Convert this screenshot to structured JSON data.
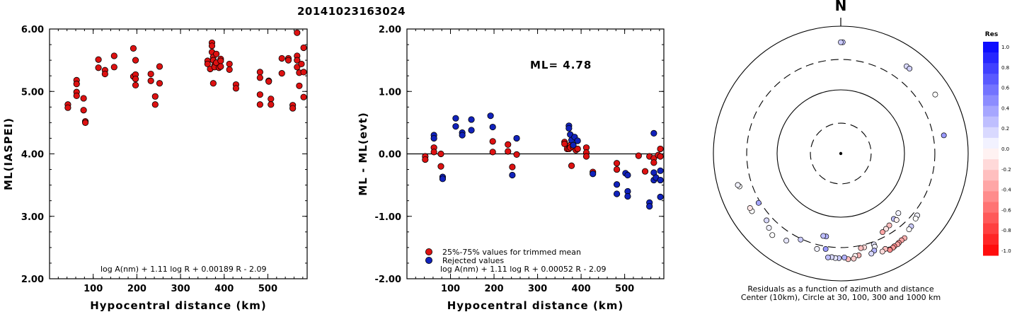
{
  "title": "20141023163024",
  "colors": {
    "red": "#dd1111",
    "blue": "#1122bb",
    "stroke": "#000000"
  },
  "chart_data": [
    {
      "type": "scatter",
      "xlabel": "Hypocentral distance (km)",
      "ylabel": "ML(IASPEI)",
      "xlim": [
        0,
        590
      ],
      "ylim": [
        2.0,
        6.0
      ],
      "xticks": [
        "100",
        "200",
        "300",
        "400",
        "500"
      ],
      "xtick_values": [
        100,
        200,
        300,
        400,
        500
      ],
      "yticks": [
        "2.00",
        "3.00",
        "4.00",
        "5.00",
        "6.00"
      ],
      "ytick_values": [
        2.0,
        3.0,
        4.0,
        5.0,
        6.0
      ],
      "formula": "log A(nm) + 1.11 log R + 0.00189 R - 2.09",
      "series": [
        {
          "color": "red",
          "points": [
            [
              42,
              4.79
            ],
            [
              42,
              4.74
            ],
            [
              62,
              5.18
            ],
            [
              62,
              5.12
            ],
            [
              62,
              4.99
            ],
            [
              62,
              4.93
            ],
            [
              78,
              4.89
            ],
            [
              78,
              4.7
            ],
            [
              82,
              4.52
            ],
            [
              82,
              4.5
            ],
            [
              112,
              5.51
            ],
            [
              112,
              5.38
            ],
            [
              127,
              5.34
            ],
            [
              127,
              5.28
            ],
            [
              148,
              5.57
            ],
            [
              148,
              5.39
            ],
            [
              192,
              5.69
            ],
            [
              192,
              5.24
            ],
            [
              197,
              5.5
            ],
            [
              197,
              5.27
            ],
            [
              197,
              5.2
            ],
            [
              197,
              5.1
            ],
            [
              232,
              5.28
            ],
            [
              232,
              5.17
            ],
            [
              242,
              4.92
            ],
            [
              242,
              4.79
            ],
            [
              252,
              5.4
            ],
            [
              252,
              5.13
            ],
            [
              362,
              5.49
            ],
            [
              362,
              5.44
            ],
            [
              368,
              5.36
            ],
            [
              372,
              5.78
            ],
            [
              372,
              5.73
            ],
            [
              372,
              5.63
            ],
            [
              375,
              5.55
            ],
            [
              375,
              5.5
            ],
            [
              378,
              5.42
            ],
            [
              378,
              5.39
            ],
            [
              375,
              5.13
            ],
            [
              382,
              5.6
            ],
            [
              382,
              5.46
            ],
            [
              388,
              5.38
            ],
            [
              392,
              5.52
            ],
            [
              392,
              5.49
            ],
            [
              392,
              5.4
            ],
            [
              412,
              5.44
            ],
            [
              412,
              5.35
            ],
            [
              427,
              5.11
            ],
            [
              427,
              5.05
            ],
            [
              482,
              5.31
            ],
            [
              482,
              5.22
            ],
            [
              482,
              4.95
            ],
            [
              482,
              4.79
            ],
            [
              502,
              5.17
            ],
            [
              502,
              5.16
            ],
            [
              507,
              4.88
            ],
            [
              507,
              4.79
            ],
            [
              532,
              5.53
            ],
            [
              532,
              5.29
            ],
            [
              547,
              5.53
            ],
            [
              547,
              5.5
            ],
            [
              557,
              4.78
            ],
            [
              557,
              4.73
            ],
            [
              567,
              5.94
            ],
            [
              567,
              5.57
            ],
            [
              567,
              5.5
            ],
            [
              567,
              5.39
            ],
            [
              572,
              5.3
            ],
            [
              572,
              5.09
            ],
            [
              577,
              5.44
            ],
            [
              582,
              5.7
            ],
            [
              582,
              5.31
            ],
            [
              582,
              4.91
            ]
          ]
        }
      ]
    },
    {
      "type": "scatter",
      "xlabel": "Hypocentral distance (km)",
      "ylabel": "ML - ML(evt)",
      "xlim": [
        0,
        590
      ],
      "ylim": [
        -2.0,
        2.0
      ],
      "xticks": [
        "100",
        "200",
        "300",
        "400",
        "500"
      ],
      "xtick_values": [
        100,
        200,
        300,
        400,
        500
      ],
      "yticks": [
        "-2.00",
        "-1.00",
        "0.00",
        "1.00",
        "2.00"
      ],
      "ytick_values": [
        -2.0,
        -1.0,
        0.0,
        1.0,
        2.0
      ],
      "annotation": "ML= 4.78",
      "formula": "log A(nm) + 1.11 log R + 0.00052 R - 2.09",
      "legend": [
        "25%-75% values for trimmed mean",
        "Rejected values"
      ],
      "series": [
        {
          "color": "red",
          "points": [
            [
              42,
              -0.04
            ],
            [
              42,
              -0.09
            ],
            [
              62,
              0.1
            ],
            [
              62,
              0.03
            ],
            [
              78,
              0.0
            ],
            [
              78,
              -0.2
            ],
            [
              197,
              0.2
            ],
            [
              197,
              0.03
            ],
            [
              232,
              0.15
            ],
            [
              232,
              0.04
            ],
            [
              242,
              -0.21
            ],
            [
              252,
              -0.01
            ],
            [
              362,
              0.19
            ],
            [
              362,
              0.16
            ],
            [
              368,
              0.08
            ],
            [
              372,
              0.08
            ],
            [
              375,
              0.14
            ],
            [
              375,
              0.1
            ],
            [
              378,
              -0.19
            ],
            [
              382,
              0.11
            ],
            [
              388,
              0.06
            ],
            [
              392,
              0.08
            ],
            [
              412,
              0.1
            ],
            [
              412,
              0.02
            ],
            [
              412,
              -0.04
            ],
            [
              427,
              -0.29
            ],
            [
              482,
              -0.15
            ],
            [
              482,
              -0.25
            ],
            [
              532,
              -0.03
            ],
            [
              547,
              -0.28
            ],
            [
              557,
              -0.04
            ],
            [
              567,
              -0.07
            ],
            [
              567,
              -0.14
            ],
            [
              577,
              -0.02
            ],
            [
              582,
              0.08
            ],
            [
              582,
              -0.04
            ]
          ]
        },
        {
          "color": "blue",
          "points": [
            [
              62,
              0.3
            ],
            [
              62,
              0.25
            ],
            [
              82,
              -0.37
            ],
            [
              82,
              -0.4
            ],
            [
              112,
              0.57
            ],
            [
              112,
              0.44
            ],
            [
              127,
              0.34
            ],
            [
              127,
              0.3
            ],
            [
              148,
              0.55
            ],
            [
              148,
              0.38
            ],
            [
              192,
              0.61
            ],
            [
              197,
              0.43
            ],
            [
              242,
              -0.34
            ],
            [
              252,
              0.25
            ],
            [
              372,
              0.45
            ],
            [
              372,
              0.41
            ],
            [
              375,
              0.31
            ],
            [
              378,
              0.22
            ],
            [
              385,
              0.27
            ],
            [
              392,
              0.21
            ],
            [
              382,
              0.14
            ],
            [
              427,
              -0.32
            ],
            [
              482,
              -0.49
            ],
            [
              482,
              -0.64
            ],
            [
              502,
              -0.31
            ],
            [
              507,
              -0.34
            ],
            [
              507,
              -0.6
            ],
            [
              507,
              -0.68
            ],
            [
              557,
              -0.78
            ],
            [
              557,
              -0.84
            ],
            [
              567,
              0.33
            ],
            [
              567,
              -0.3
            ],
            [
              567,
              -0.42
            ],
            [
              572,
              -0.38
            ],
            [
              582,
              -0.27
            ],
            [
              582,
              -0.42
            ],
            [
              582,
              -0.69
            ]
          ]
        }
      ]
    },
    {
      "type": "polar-scatter",
      "north_label": "N",
      "caption_line1": "Residuals as a function of azimuth and distance",
      "caption_line2": "Center (10km), Circle at 30, 100, 300 and 1000 km",
      "colorbar_title": "Res",
      "colorbar_ticks": [
        "1.0",
        "0.8",
        "0.6",
        "0.4",
        "0.2",
        "0.0",
        "-0.2",
        "-0.4",
        "-0.6",
        "-0.8",
        "-1.0"
      ],
      "rings_km": [
        30,
        100,
        300,
        1000
      ],
      "points": [
        {
          "az": 1,
          "dist": 560,
          "res": 0.25
        },
        {
          "az": 0,
          "dist": 560,
          "res": 0.2
        },
        {
          "az": 37,
          "dist": 520,
          "res": 0.15
        },
        {
          "az": 39,
          "dist": 520,
          "res": 0.18
        },
        {
          "az": 58,
          "dist": 560,
          "res": 0.0
        },
        {
          "az": 80,
          "dist": 440,
          "res": 0.4
        },
        {
          "az": 136,
          "dist": 200,
          "res": 0.05
        },
        {
          "az": 141,
          "dist": 210,
          "res": 0.25
        },
        {
          "az": 140,
          "dist": 230,
          "res": -0.05
        },
        {
          "az": 146,
          "dist": 230,
          "res": -0.25
        },
        {
          "az": 149,
          "dist": 240,
          "res": -0.1
        },
        {
          "az": 152,
          "dist": 250,
          "res": -0.35
        },
        {
          "az": 129,
          "dist": 350,
          "res": 0.05
        },
        {
          "az": 131,
          "dist": 360,
          "res": 0.0
        },
        {
          "az": 136,
          "dist": 390,
          "res": 0.2
        },
        {
          "az": 138,
          "dist": 400,
          "res": 0.0
        },
        {
          "az": 143,
          "dist": 460,
          "res": -0.3
        },
        {
          "az": 145,
          "dist": 460,
          "res": -0.35
        },
        {
          "az": 147,
          "dist": 470,
          "res": -0.4
        },
        {
          "az": 148,
          "dist": 480,
          "res": -0.35
        },
        {
          "az": 150,
          "dist": 480,
          "res": -0.45
        },
        {
          "az": 151,
          "dist": 490,
          "res": -0.4
        },
        {
          "az": 153,
          "dist": 490,
          "res": -0.5
        },
        {
          "az": 153,
          "dist": 500,
          "res": -0.45
        },
        {
          "az": 155,
          "dist": 450,
          "res": -0.25
        },
        {
          "az": 157,
          "dist": 470,
          "res": -0.15
        },
        {
          "az": 160,
          "dist": 330,
          "res": 0.1
        },
        {
          "az": 160,
          "dist": 360,
          "res": 0.05
        },
        {
          "az": 161,
          "dist": 410,
          "res": 0.3
        },
        {
          "az": 163,
          "dist": 440,
          "res": 0.15
        },
        {
          "az": 166,
          "dist": 330,
          "res": -0.15
        },
        {
          "az": 168,
          "dist": 330,
          "res": -0.25
        },
        {
          "az": 170,
          "dist": 420,
          "res": -0.3
        },
        {
          "az": 172,
          "dist": 420,
          "res": -0.05
        },
        {
          "az": 173,
          "dist": 460,
          "res": -0.2
        },
        {
          "az": 176,
          "dist": 460,
          "res": -0.25
        },
        {
          "az": 178,
          "dist": 430,
          "res": 0.3
        },
        {
          "az": 181,
          "dist": 440,
          "res": 0.2
        },
        {
          "az": 183,
          "dist": 440,
          "res": 0.1
        },
        {
          "az": 185,
          "dist": 430,
          "res": 0.15
        },
        {
          "az": 187,
          "dist": 440,
          "res": 0.25
        },
        {
          "az": 194,
          "dist": 350,
          "res": 0.05
        },
        {
          "az": 189,
          "dist": 330,
          "res": 0.4
        },
        {
          "az": 190,
          "dist": 210,
          "res": 0.3
        },
        {
          "az": 192,
          "dist": 210,
          "res": 0.25
        },
        {
          "az": 205,
          "dist": 310,
          "res": 0.2
        },
        {
          "az": 212,
          "dist": 410,
          "res": 0.1
        },
        {
          "az": 220,
          "dist": 470,
          "res": 0.0
        },
        {
          "az": 224,
          "dist": 420,
          "res": 0.05
        },
        {
          "az": 228,
          "dist": 370,
          "res": 0.15
        },
        {
          "az": 237,
          "dist": 460,
          "res": 0.0
        },
        {
          "az": 239,
          "dist": 460,
          "res": -0.1
        },
        {
          "az": 239,
          "dist": 320,
          "res": 0.35
        },
        {
          "az": 252,
          "dist": 470,
          "res": 0.0
        },
        {
          "az": 253,
          "dist": 490,
          "res": 0.05
        }
      ]
    }
  ]
}
